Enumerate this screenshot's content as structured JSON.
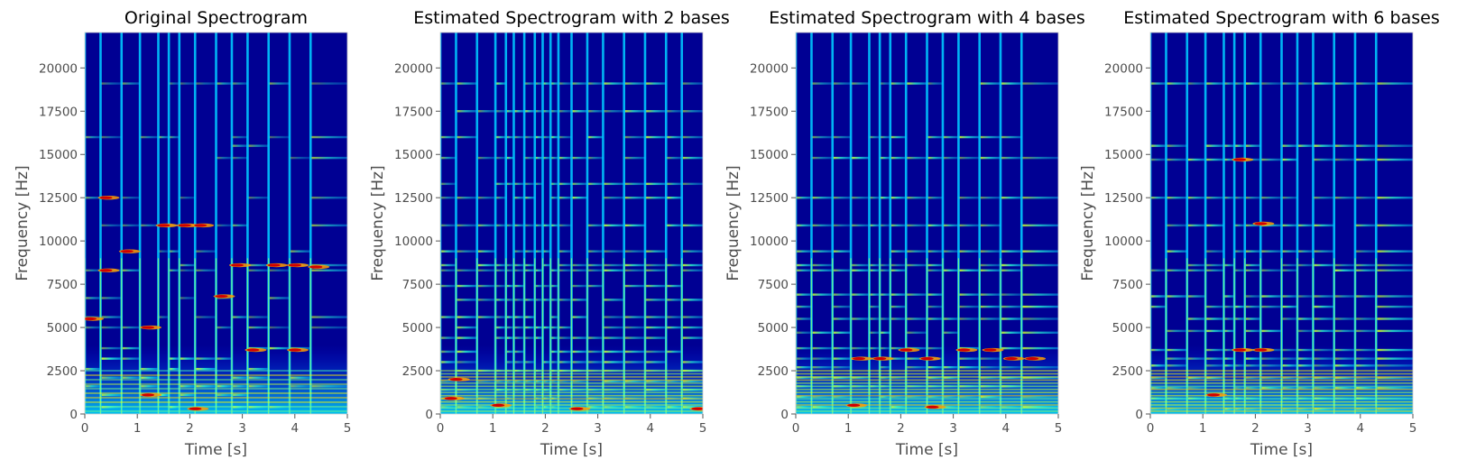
{
  "figure": {
    "background": "#ffffff",
    "text_color": "#4d4d4d",
    "title_color": "#000000",
    "colormap": "jet",
    "colormap_stops": [
      "#00007f",
      "#0000ff",
      "#007fff",
      "#00ffff",
      "#7fff7f",
      "#ffff00",
      "#ff7f00",
      "#ff0000",
      "#7f0000"
    ]
  },
  "chart_data": [
    {
      "type": "heatmap",
      "title": "Original Spectrogram",
      "xlabel": "Time [s]",
      "ylabel": "Frequency [Hz]",
      "xlim": [
        0,
        5
      ],
      "ylim": [
        0,
        22050
      ],
      "xticks": [
        0,
        1,
        2,
        3,
        4,
        5
      ],
      "yticks": [
        0,
        2500,
        5000,
        7500,
        10000,
        12500,
        15000,
        17500,
        20000
      ],
      "grid": false,
      "onsets_s": [
        0.0,
        0.3,
        0.7,
        1.05,
        1.4,
        1.6,
        1.8,
        2.1,
        2.5,
        2.8,
        3.1,
        3.5,
        3.9,
        4.3
      ],
      "harmonic_lines_hz": [
        400,
        1100,
        1600,
        2100,
        2600,
        3200,
        3800,
        5000,
        5600,
        6700,
        8300,
        8600,
        9400,
        10900,
        12500,
        14800,
        15500,
        16000,
        19100
      ],
      "peak_events": [
        {
          "t": 0.0,
          "f": 5500
        },
        {
          "t": 0.3,
          "f": 8300
        },
        {
          "t": 0.3,
          "f": 12500
        },
        {
          "t": 0.7,
          "f": 9400
        },
        {
          "t": 1.1,
          "f": 5000
        },
        {
          "t": 1.4,
          "f": 10900
        },
        {
          "t": 1.8,
          "f": 10900
        },
        {
          "t": 2.1,
          "f": 10900
        },
        {
          "t": 2.5,
          "f": 6800
        },
        {
          "t": 2.8,
          "f": 8600
        },
        {
          "t": 3.5,
          "f": 8600
        },
        {
          "t": 3.9,
          "f": 8600
        },
        {
          "t": 4.3,
          "f": 8500
        },
        {
          "t": 3.1,
          "f": 3700
        },
        {
          "t": 3.9,
          "f": 3700
        },
        {
          "t": 1.1,
          "f": 1100
        },
        {
          "t": 2.0,
          "f": 300
        }
      ]
    },
    {
      "type": "heatmap",
      "title": "Estimated Spectrogram with 2 bases",
      "xlabel": "Time [s]",
      "ylabel": "Frequency [Hz]",
      "xlim": [
        0,
        5
      ],
      "ylim": [
        0,
        22050
      ],
      "xticks": [
        0,
        1,
        2,
        3,
        4,
        5
      ],
      "yticks": [
        0,
        2500,
        5000,
        7500,
        10000,
        12500,
        15000,
        17500,
        20000
      ],
      "grid": false,
      "onsets_s": [
        0.0,
        0.3,
        0.7,
        1.05,
        1.25,
        1.4,
        1.6,
        1.8,
        1.95,
        2.1,
        2.25,
        2.5,
        2.8,
        3.1,
        3.5,
        3.9,
        4.3,
        4.6
      ],
      "harmonic_lines_hz": [
        400,
        900,
        1400,
        1900,
        2500,
        3000,
        3600,
        4400,
        5000,
        5600,
        6600,
        7400,
        8300,
        8600,
        9400,
        10900,
        12500,
        13300,
        14800,
        16000,
        17500,
        19100
      ],
      "peak_events": [
        {
          "t": 0.1,
          "f": 900
        },
        {
          "t": 0.2,
          "f": 2000
        },
        {
          "t": 1.0,
          "f": 500
        },
        {
          "t": 2.5,
          "f": 300
        },
        {
          "t": 4.8,
          "f": 300
        }
      ]
    },
    {
      "type": "heatmap",
      "title": "Estimated Spectrogram with 4 bases",
      "xlabel": "Time [s]",
      "ylabel": "Frequency [Hz]",
      "xlim": [
        0,
        5
      ],
      "ylim": [
        0,
        22050
      ],
      "xticks": [
        0,
        1,
        2,
        3,
        4,
        5
      ],
      "yticks": [
        0,
        2500,
        5000,
        7500,
        10000,
        12500,
        15000,
        17500,
        20000
      ],
      "grid": false,
      "onsets_s": [
        0.0,
        0.3,
        0.7,
        1.05,
        1.4,
        1.6,
        1.8,
        2.1,
        2.5,
        2.8,
        3.1,
        3.5,
        3.9,
        4.3
      ],
      "harmonic_lines_hz": [
        400,
        1000,
        1600,
        2100,
        2700,
        3200,
        3800,
        4700,
        5500,
        6200,
        6900,
        8300,
        8600,
        9400,
        10900,
        12500,
        14800,
        16000,
        19100
      ],
      "peak_events": [
        {
          "t": 1.1,
          "f": 3200
        },
        {
          "t": 1.5,
          "f": 3200
        },
        {
          "t": 2.0,
          "f": 3700
        },
        {
          "t": 2.4,
          "f": 3200
        },
        {
          "t": 3.1,
          "f": 3700
        },
        {
          "t": 3.6,
          "f": 3700
        },
        {
          "t": 4.0,
          "f": 3200
        },
        {
          "t": 4.4,
          "f": 3200
        },
        {
          "t": 1.0,
          "f": 500
        },
        {
          "t": 2.5,
          "f": 400
        }
      ]
    },
    {
      "type": "heatmap",
      "title": "Estimated Spectrogram with 6 bases",
      "xlabel": "Time [s]",
      "ylabel": "Frequency [Hz]",
      "xlim": [
        0,
        5
      ],
      "ylim": [
        0,
        22050
      ],
      "xticks": [
        0,
        1,
        2,
        3,
        4,
        5
      ],
      "yticks": [
        0,
        2500,
        5000,
        7500,
        10000,
        12500,
        15000,
        17500,
        20000
      ],
      "grid": false,
      "onsets_s": [
        0.0,
        0.3,
        0.7,
        1.05,
        1.4,
        1.6,
        1.8,
        2.1,
        2.5,
        2.8,
        3.1,
        3.5,
        3.9,
        4.3
      ],
      "harmonic_lines_hz": [
        300,
        900,
        1500,
        2100,
        2800,
        3200,
        3700,
        4800,
        5500,
        6200,
        6800,
        8300,
        8600,
        9400,
        10900,
        12500,
        14700,
        15500,
        19100
      ],
      "peak_events": [
        {
          "t": 1.6,
          "f": 3700
        },
        {
          "t": 2.0,
          "f": 3700
        },
        {
          "t": 1.6,
          "f": 14700
        },
        {
          "t": 2.0,
          "f": 11000
        },
        {
          "t": 1.1,
          "f": 1100
        }
      ]
    }
  ]
}
